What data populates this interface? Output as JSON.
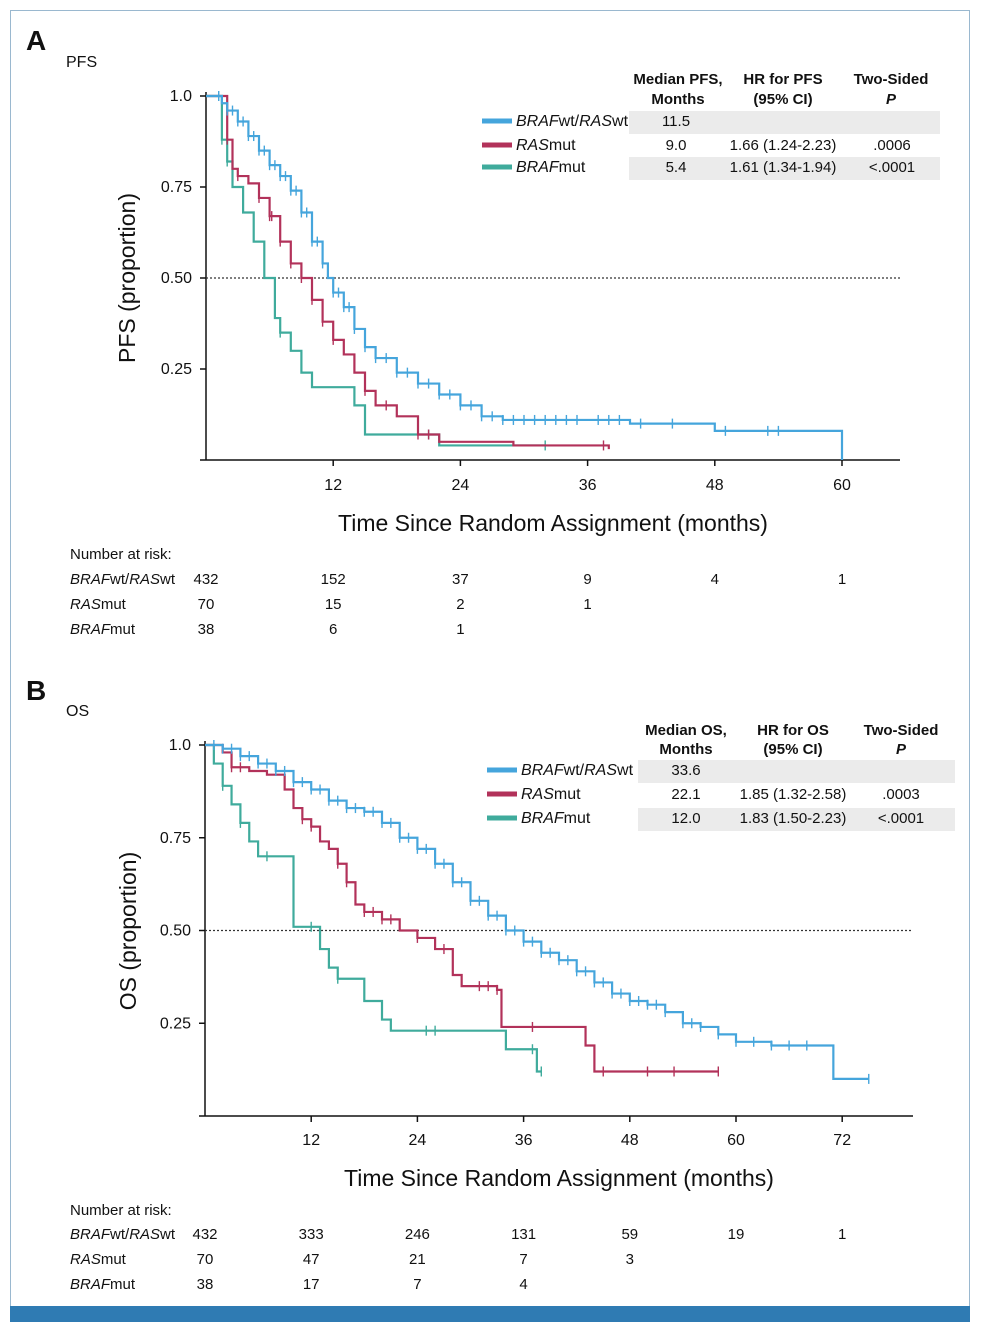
{
  "colors": {
    "wt": "#45a5dc",
    "ras": "#b2325a",
    "braf": "#3fab9c",
    "shade": "#ebebeb",
    "frame": "#9ab8cf",
    "footer": "#2f7bb3"
  },
  "chart_data": [
    {
      "panel": "A",
      "subtitle": "PFS",
      "type": "line",
      "ylabel": "PFS (proportion)",
      "xlabel": "Time Since Random Assignment (months)",
      "ylim": [
        0,
        1.0
      ],
      "xlim": [
        0,
        66
      ],
      "xticks": [
        "12",
        "24",
        "36",
        "48",
        "60"
      ],
      "yticks": [
        "1.0",
        "0.75",
        "0.50",
        "0.25"
      ],
      "reference_line": 0.5,
      "table": {
        "headers": [
          [
            "Median PFS,",
            "Months"
          ],
          [
            "HR for PFS",
            "(95% CI)"
          ],
          [
            "Two-Sided",
            "P"
          ]
        ],
        "rows": [
          {
            "label": [
              "BRAF",
              "wt/",
              "RAS",
              "wt"
            ],
            "median": "11.5",
            "hr": "",
            "p": ""
          },
          {
            "label": [
              "RAS",
              "mut",
              "",
              ""
            ],
            "median": "9.0",
            "hr": "1.66 (1.24-2.23)",
            "p": ".0006"
          },
          {
            "label": [
              "BRAF",
              "mut",
              "",
              ""
            ],
            "median": "5.4",
            "hr": "1.61 (1.34-1.94)",
            "p": "<.0001"
          }
        ]
      },
      "series": [
        {
          "name": "BRAFwt/RASwt",
          "key": "wt",
          "points": [
            [
              0,
              1
            ],
            [
              1,
              1
            ],
            [
              1.5,
              0.98
            ],
            [
              2,
              0.96
            ],
            [
              3,
              0.93
            ],
            [
              4,
              0.89
            ],
            [
              5,
              0.85
            ],
            [
              6,
              0.81
            ],
            [
              7,
              0.78
            ],
            [
              8,
              0.74
            ],
            [
              9,
              0.68
            ],
            [
              10,
              0.6
            ],
            [
              11,
              0.54
            ],
            [
              11.5,
              0.5
            ],
            [
              12,
              0.46
            ],
            [
              13,
              0.42
            ],
            [
              14,
              0.36
            ],
            [
              15,
              0.31
            ],
            [
              16,
              0.28
            ],
            [
              18,
              0.24
            ],
            [
              20,
              0.21
            ],
            [
              22,
              0.18
            ],
            [
              24,
              0.15
            ],
            [
              26,
              0.12
            ],
            [
              28,
              0.11
            ],
            [
              36,
              0.11
            ],
            [
              40,
              0.1
            ],
            [
              48,
              0.08
            ],
            [
              55,
              0.08
            ],
            [
              60,
              0.08
            ],
            [
              60,
              0
            ]
          ],
          "censors": [
            1.2,
            2,
            2.5,
            3,
            3.5,
            4,
            4.5,
            5,
            5.5,
            6,
            6.5,
            7,
            7.5,
            8,
            8.5,
            9,
            9.5,
            10,
            10.5,
            11,
            12,
            12.5,
            13,
            13.5,
            14,
            15,
            16,
            17,
            18,
            19,
            20,
            21,
            22,
            23,
            24,
            25,
            26,
            27,
            28,
            29,
            30,
            31,
            32,
            33,
            34,
            35,
            37,
            38,
            39,
            41,
            44,
            49,
            53,
            54
          ]
        },
        {
          "name": "RASmut",
          "key": "ras",
          "points": [
            [
              0,
              1
            ],
            [
              1,
              1
            ],
            [
              2,
              0.88
            ],
            [
              2.5,
              0.8
            ],
            [
              3,
              0.78
            ],
            [
              4,
              0.76
            ],
            [
              5,
              0.72
            ],
            [
              6,
              0.67
            ],
            [
              7,
              0.6
            ],
            [
              8,
              0.54
            ],
            [
              9,
              0.5
            ],
            [
              10,
              0.44
            ],
            [
              11,
              0.38
            ],
            [
              12,
              0.33
            ],
            [
              13,
              0.29
            ],
            [
              14,
              0.24
            ],
            [
              15,
              0.19
            ],
            [
              16,
              0.15
            ],
            [
              18,
              0.12
            ],
            [
              20,
              0.07
            ],
            [
              22,
              0.05
            ],
            [
              29,
              0.04
            ],
            [
              38,
              0.03
            ]
          ],
          "censors": [
            2,
            3,
            5,
            6,
            6.2,
            7,
            8,
            9,
            10,
            11,
            12,
            15,
            17,
            20,
            21,
            37.5
          ]
        },
        {
          "name": "BRAFmut",
          "key": "braf",
          "points": [
            [
              0,
              1
            ],
            [
              1,
              1
            ],
            [
              1.5,
              0.88
            ],
            [
              2,
              0.82
            ],
            [
              2.5,
              0.75
            ],
            [
              3.5,
              0.68
            ],
            [
              4.5,
              0.6
            ],
            [
              5.5,
              0.5
            ],
            [
              6.5,
              0.39
            ],
            [
              7,
              0.35
            ],
            [
              8,
              0.3
            ],
            [
              9,
              0.24
            ],
            [
              10,
              0.2
            ],
            [
              14,
              0.15
            ],
            [
              15,
              0.07
            ],
            [
              21,
              0.07
            ],
            [
              22,
              0.04
            ],
            [
              32,
              0.04
            ]
          ],
          "censors": [
            1.5,
            2,
            7,
            21,
            32
          ]
        }
      ],
      "risk": {
        "title": "Number at risk:",
        "rows": [
          {
            "label": [
              "BRAF",
              "wt/",
              "RAS",
              "wt"
            ],
            "values": [
              "432",
              "152",
              "37",
              "9",
              "4",
              "1"
            ]
          },
          {
            "label": [
              "RAS",
              "mut",
              "",
              ""
            ],
            "values": [
              "70",
              "15",
              "2",
              "1",
              "",
              ""
            ]
          },
          {
            "label": [
              "BRAF",
              "mut",
              "",
              ""
            ],
            "values": [
              "38",
              "6",
              "1",
              "",
              "",
              ""
            ]
          }
        ]
      }
    },
    {
      "panel": "B",
      "subtitle": "OS",
      "type": "line",
      "ylabel": "OS (proportion)",
      "xlabel": "Time Since Random Assignment (months)",
      "ylim": [
        0,
        1.0
      ],
      "xlim": [
        0,
        80
      ],
      "xticks": [
        "12",
        "24",
        "36",
        "48",
        "60",
        "72"
      ],
      "yticks": [
        "1.0",
        "0.75",
        "0.50",
        "0.25"
      ],
      "reference_line": 0.5,
      "table": {
        "headers": [
          [
            "Median OS,",
            "Months"
          ],
          [
            "HR for OS",
            "(95% CI)"
          ],
          [
            "Two-Sided",
            "P"
          ]
        ],
        "rows": [
          {
            "label": [
              "BRAF",
              "wt/",
              "RAS",
              "wt"
            ],
            "median": "33.6",
            "hr": "",
            "p": ""
          },
          {
            "label": [
              "RAS",
              "mut",
              "",
              ""
            ],
            "median": "22.1",
            "hr": "1.85 (1.32-2.58)",
            "p": ".0003"
          },
          {
            "label": [
              "BRAF",
              "mut",
              "",
              ""
            ],
            "median": "12.0",
            "hr": "1.83 (1.50-2.23)",
            "p": "<.0001"
          }
        ]
      },
      "series": [
        {
          "name": "BRAFwt/RASwt",
          "key": "wt",
          "points": [
            [
              0,
              1
            ],
            [
              2,
              0.99
            ],
            [
              4,
              0.97
            ],
            [
              6,
              0.95
            ],
            [
              8,
              0.93
            ],
            [
              10,
              0.9
            ],
            [
              12,
              0.88
            ],
            [
              14,
              0.85
            ],
            [
              16,
              0.83
            ],
            [
              18,
              0.82
            ],
            [
              20,
              0.79
            ],
            [
              22,
              0.75
            ],
            [
              24,
              0.72
            ],
            [
              26,
              0.68
            ],
            [
              28,
              0.63
            ],
            [
              30,
              0.58
            ],
            [
              32,
              0.54
            ],
            [
              34,
              0.5
            ],
            [
              36,
              0.47
            ],
            [
              38,
              0.44
            ],
            [
              40,
              0.42
            ],
            [
              42,
              0.39
            ],
            [
              44,
              0.36
            ],
            [
              46,
              0.33
            ],
            [
              48,
              0.31
            ],
            [
              50,
              0.3
            ],
            [
              52,
              0.28
            ],
            [
              54,
              0.25
            ],
            [
              56,
              0.24
            ],
            [
              58,
              0.22
            ],
            [
              60,
              0.2
            ],
            [
              64,
              0.19
            ],
            [
              70,
              0.19
            ],
            [
              71,
              0.1
            ],
            [
              75,
              0.1
            ]
          ],
          "censors": [
            1,
            2,
            3,
            4,
            5,
            6,
            7,
            8,
            9,
            10,
            11,
            12,
            13,
            14,
            15,
            16,
            17,
            18,
            19,
            20,
            21,
            22,
            23,
            24,
            25,
            26,
            27,
            28,
            29,
            30,
            31,
            32,
            33,
            34,
            35,
            36,
            37,
            38,
            39,
            40,
            41,
            42,
            43,
            44,
            45,
            46,
            47,
            48,
            49,
            50,
            51,
            52,
            54,
            55,
            56,
            58,
            60,
            62,
            64,
            66,
            68,
            75
          ]
        },
        {
          "name": "RASmut",
          "key": "ras",
          "points": [
            [
              0,
              1
            ],
            [
              2,
              0.98
            ],
            [
              3,
              0.94
            ],
            [
              5,
              0.93
            ],
            [
              7,
              0.92
            ],
            [
              9,
              0.88
            ],
            [
              10,
              0.83
            ],
            [
              11,
              0.8
            ],
            [
              12,
              0.78
            ],
            [
              13,
              0.74
            ],
            [
              14,
              0.72
            ],
            [
              15,
              0.68
            ],
            [
              16,
              0.63
            ],
            [
              17,
              0.57
            ],
            [
              18,
              0.55
            ],
            [
              20,
              0.53
            ],
            [
              22,
              0.5
            ],
            [
              24,
              0.48
            ],
            [
              26,
              0.45
            ],
            [
              28,
              0.38
            ],
            [
              29,
              0.35
            ],
            [
              33,
              0.34
            ],
            [
              33.5,
              0.24
            ],
            [
              42,
              0.24
            ],
            [
              43,
              0.19
            ],
            [
              44,
              0.12
            ],
            [
              58,
              0.12
            ]
          ],
          "censors": [
            3,
            4,
            11,
            12,
            15,
            16,
            18,
            19,
            20,
            21,
            24,
            27,
            31,
            32,
            33,
            37,
            45,
            50,
            53,
            58
          ]
        },
        {
          "name": "BRAFmut",
          "key": "braf",
          "points": [
            [
              0,
              1
            ],
            [
              1,
              0.95
            ],
            [
              2,
              0.89
            ],
            [
              3,
              0.84
            ],
            [
              4,
              0.79
            ],
            [
              5,
              0.74
            ],
            [
              6,
              0.7
            ],
            [
              9,
              0.7
            ],
            [
              10,
              0.51
            ],
            [
              12,
              0.51
            ],
            [
              13,
              0.45
            ],
            [
              14,
              0.4
            ],
            [
              15,
              0.37
            ],
            [
              17,
              0.37
            ],
            [
              18,
              0.31
            ],
            [
              20,
              0.26
            ],
            [
              21,
              0.23
            ],
            [
              33,
              0.23
            ],
            [
              34,
              0.18
            ],
            [
              37,
              0.18
            ],
            [
              37.5,
              0.12
            ],
            [
              38,
              0.12
            ]
          ],
          "censors": [
            2,
            4,
            7,
            12,
            15,
            25,
            26,
            37,
            38
          ]
        }
      ],
      "risk": {
        "title": "Number at risk:",
        "rows": [
          {
            "label": [
              "BRAF",
              "wt/",
              "RAS",
              "wt"
            ],
            "values": [
              "432",
              "333",
              "246",
              "131",
              "59",
              "19",
              "1"
            ]
          },
          {
            "label": [
              "RAS",
              "mut",
              "",
              ""
            ],
            "values": [
              "70",
              "47",
              "21",
              "7",
              "3",
              "",
              ""
            ]
          },
          {
            "label": [
              "BRAF",
              "mut",
              "",
              ""
            ],
            "values": [
              "38",
              "17",
              "7",
              "4",
              "",
              "",
              ""
            ]
          }
        ]
      }
    }
  ]
}
